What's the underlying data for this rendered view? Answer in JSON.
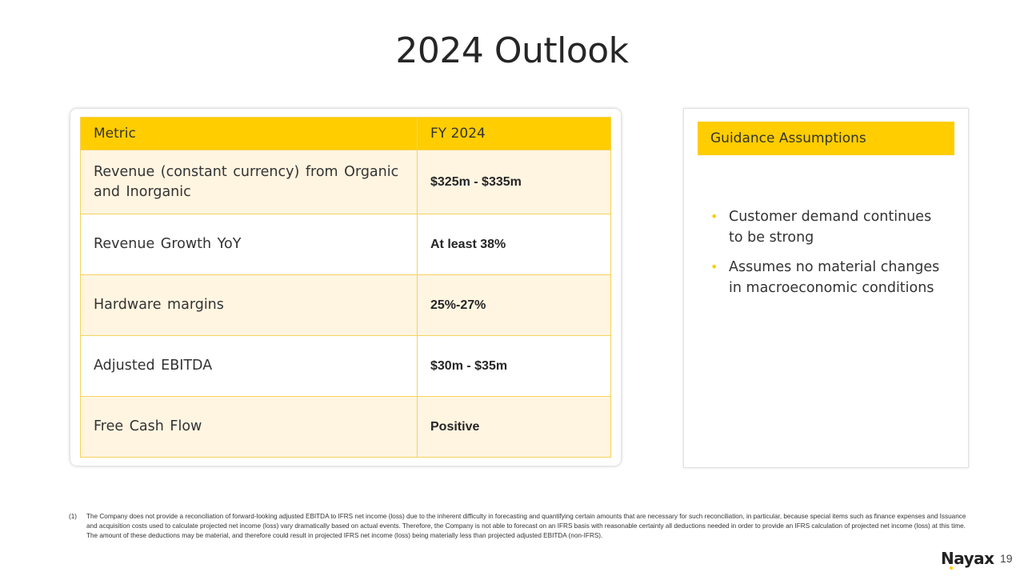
{
  "slide": {
    "title": "2024 Outlook",
    "page_number": "19"
  },
  "table": {
    "headers": {
      "metric": "Metric",
      "value": "FY 2024"
    },
    "rows": [
      {
        "metric": "Revenue (constant currency) from Organic and Inorganic",
        "value": "$325m - $335m"
      },
      {
        "metric": "Revenue Growth YoY",
        "value": "At least 38%"
      },
      {
        "metric": "Hardware margins",
        "value": "25%-27%"
      },
      {
        "metric": "Adjusted EBITDA",
        "value": "$30m - $35m"
      },
      {
        "metric": "Free Cash Flow",
        "value": "Positive"
      }
    ]
  },
  "guidance": {
    "header": "Guidance Assumptions",
    "bullets": [
      "Customer demand continues to be strong",
      "Assumes no material changes in macroeconomic conditions"
    ]
  },
  "footnote": {
    "number": "(1)",
    "text": "The Company does not provide a reconciliation of forward-looking adjusted EBITDA to IFRS net income (loss) due to the inherent difficulty in forecasting and quantifying certain amounts that are necessary for such reconciliation, in particular, because special items such as finance expenses and Issuance and acquisition costs used to calculate projected net income (loss) vary dramatically based on actual events. Therefore, the Company is not able to forecast on an IFRS basis with reasonable certainty all deductions needed in order to provide an IFRS calculation of projected net income (loss) at this time. The amount of these deductions may be material, and therefore could result in projected IFRS net income (loss) being materially less than projected adjusted EBITDA (non-IFRS)."
  },
  "brand": {
    "logo_text": "Nayax",
    "accent_color": "#ffcd00"
  }
}
